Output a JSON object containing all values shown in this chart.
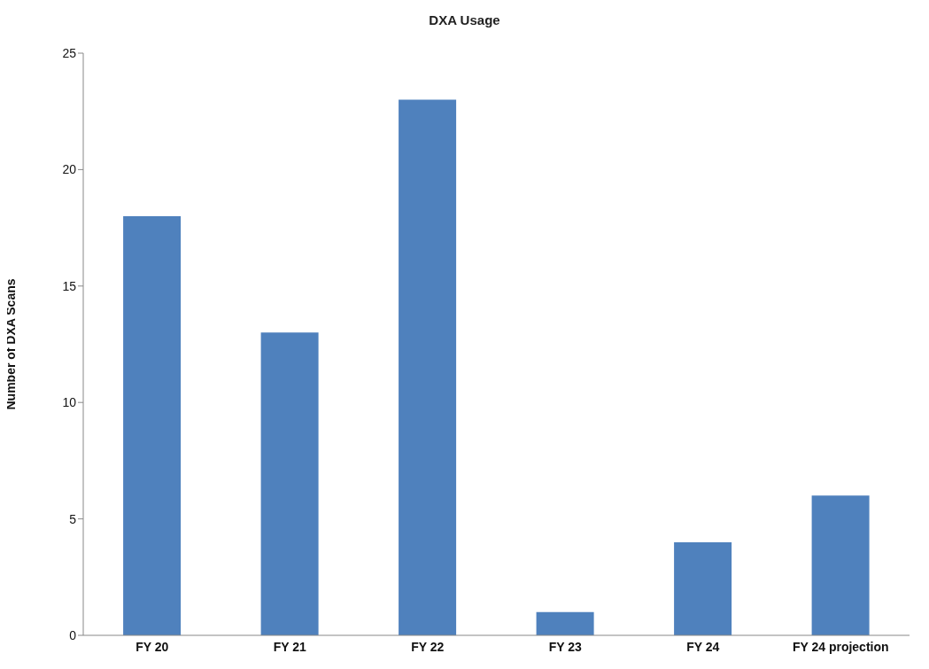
{
  "chart_data": {
    "type": "bar",
    "title": "DXA Usage",
    "ylabel": "Number of DXA Scans",
    "categories": [
      "FY 20",
      "FY 21",
      "FY 22",
      "FY 23",
      "FY 24",
      "FY 24 projection"
    ],
    "values": [
      18,
      13,
      23,
      1,
      4,
      6
    ],
    "color": "#4f81bd",
    "ylim": [
      0,
      25
    ],
    "yticks": [
      0,
      5,
      10,
      15,
      20,
      25
    ],
    "grid": false
  }
}
